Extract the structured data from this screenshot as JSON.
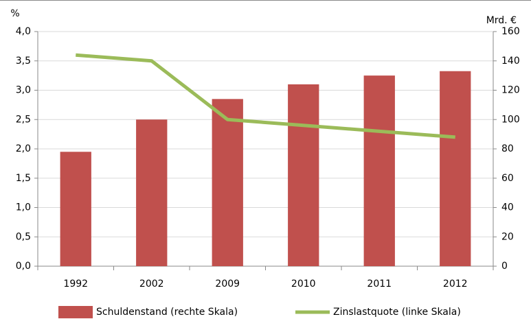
{
  "chart_data": {
    "type": "combo",
    "categories": [
      "1992",
      "2002",
      "2009",
      "2010",
      "2011",
      "2012"
    ],
    "ylabel": "%",
    "y2label": "Mrd. €",
    "ylim": [
      0,
      4
    ],
    "yticks": [
      {
        "value": 0,
        "label": "0,0"
      },
      {
        "value": 0.5,
        "label": "0,5"
      },
      {
        "value": 1,
        "label": "1,0"
      },
      {
        "value": 1.5,
        "label": "1,5"
      },
      {
        "value": 2,
        "label": "2,0"
      },
      {
        "value": 2.5,
        "label": "2,5"
      },
      {
        "value": 3,
        "label": "3,0"
      },
      {
        "value": 3.5,
        "label": "3,5"
      },
      {
        "value": 4,
        "label": "4,0"
      }
    ],
    "y2lim": [
      0,
      160
    ],
    "y2ticks": [
      0,
      20,
      40,
      60,
      80,
      100,
      120,
      140,
      160
    ],
    "grid": true,
    "legend": "bottom",
    "series": [
      {
        "name": "Schuldenstand (rechte Skala)",
        "type": "bar",
        "axis": "y2",
        "color": "#c0504d",
        "values": [
          78,
          100,
          114,
          124,
          130,
          133
        ]
      },
      {
        "name": "Zinslastquote (linke Skala)",
        "type": "line",
        "axis": "y",
        "color": "#9bbb59",
        "values": [
          3.6,
          3.5,
          2.5,
          2.4,
          2.3,
          2.2
        ]
      }
    ]
  }
}
